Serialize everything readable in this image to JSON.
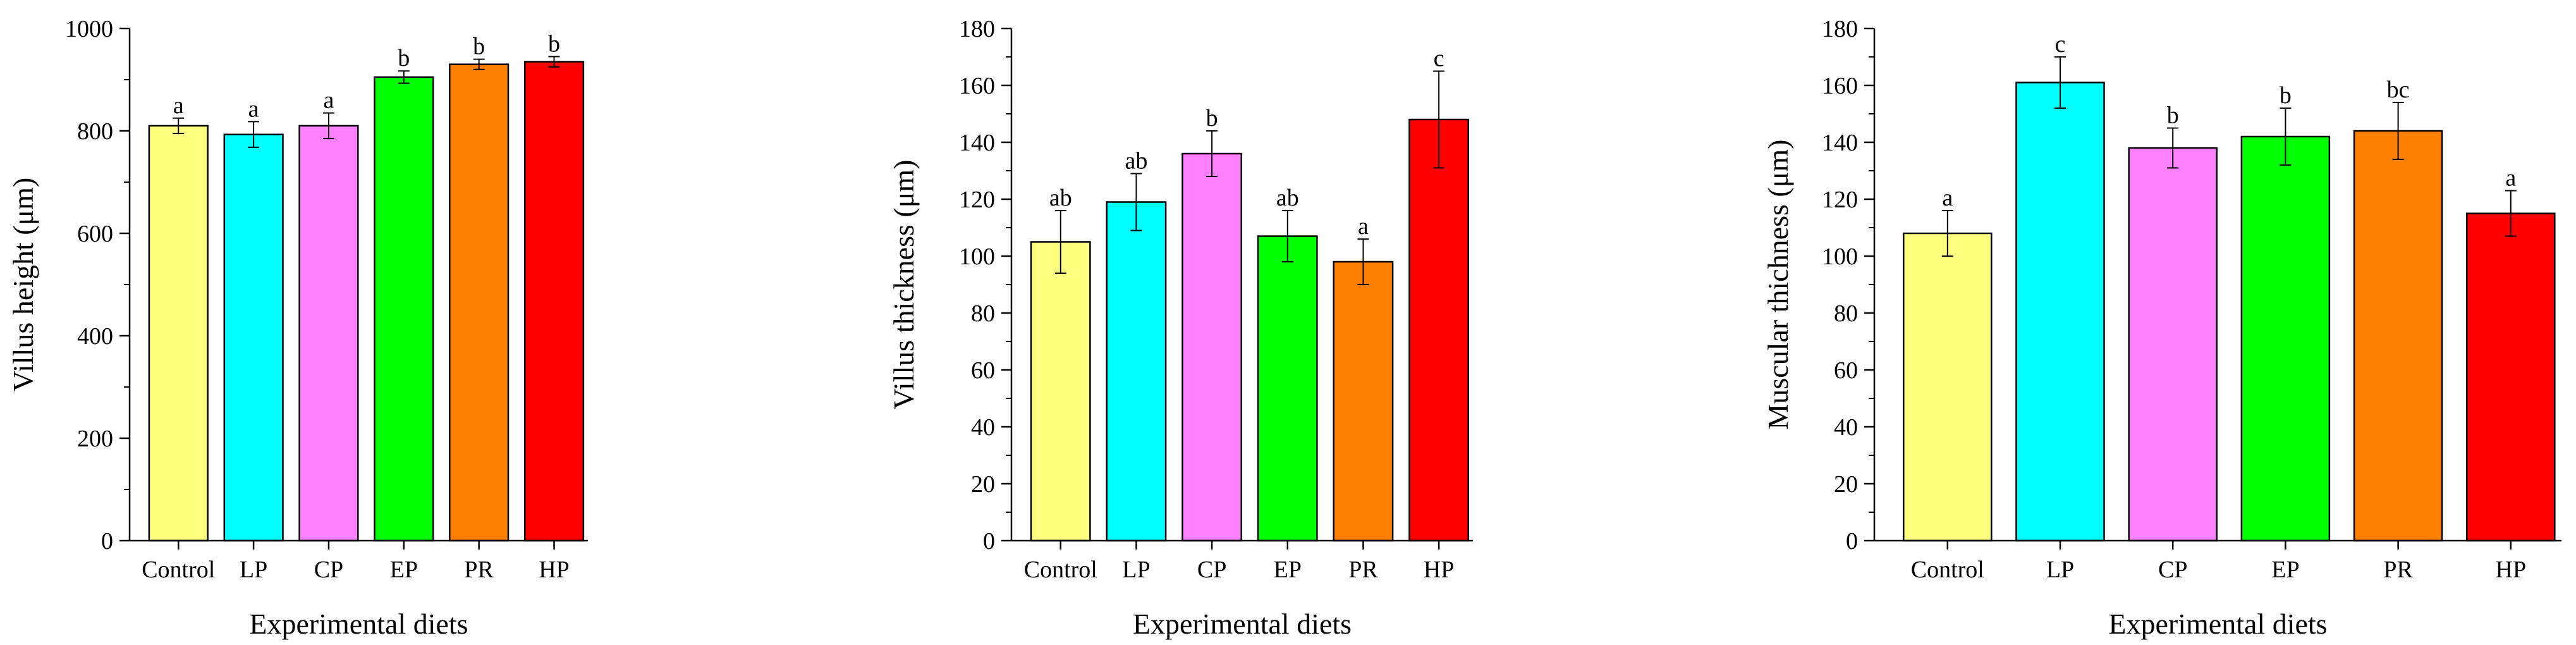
{
  "chart_data": [
    {
      "type": "bar",
      "title": "",
      "xlabel": "Experimental diets",
      "ylabel": "Villus height (μm)",
      "ylim": [
        0,
        1000
      ],
      "yticks": [
        "0",
        "200",
        "400",
        "600",
        "800",
        "1000"
      ],
      "categories": [
        "Control",
        "LP",
        "CP",
        "EP",
        "PR",
        "HP"
      ],
      "values": [
        810,
        793,
        810,
        905,
        930,
        935
      ],
      "errors": [
        15,
        25,
        25,
        12,
        10,
        10
      ],
      "significance": [
        "a",
        "a",
        "a",
        "b",
        "b",
        "b"
      ],
      "colors": [
        "#ffff80",
        "#00ffff",
        "#ff80ff",
        "#00ff00",
        "#ff8000",
        "#ff0000"
      ]
    },
    {
      "type": "bar",
      "title": "",
      "xlabel": "Experimental diets",
      "ylabel": "Villus thickness (μm)",
      "ylim": [
        0,
        180
      ],
      "yticks": [
        "0",
        "20",
        "40",
        "60",
        "80",
        "100",
        "120",
        "140",
        "160",
        "180"
      ],
      "categories": [
        "Control",
        "LP",
        "CP",
        "EP",
        "PR",
        "HP"
      ],
      "values": [
        105,
        119,
        136,
        107,
        98,
        148
      ],
      "errors": [
        11,
        10,
        8,
        9,
        8,
        17
      ],
      "significance": [
        "ab",
        "ab",
        "b",
        "ab",
        "a",
        "c"
      ],
      "colors": [
        "#ffff80",
        "#00ffff",
        "#ff80ff",
        "#00ff00",
        "#ff8000",
        "#ff0000"
      ]
    },
    {
      "type": "bar",
      "title": "",
      "xlabel": "Experimental diets",
      "ylabel": "Muscular thichness (μm)",
      "ylim": [
        0,
        180
      ],
      "yticks": [
        "0",
        "20",
        "40",
        "60",
        "80",
        "100",
        "120",
        "140",
        "160",
        "180"
      ],
      "categories": [
        "Control",
        "LP",
        "CP",
        "EP",
        "PR",
        "HP"
      ],
      "values": [
        108,
        161,
        138,
        142,
        144,
        115
      ],
      "errors": [
        8,
        9,
        7,
        10,
        10,
        8
      ],
      "significance": [
        "a",
        "c",
        "b",
        "b",
        "bc",
        "a"
      ],
      "colors": [
        "#ffff80",
        "#00ffff",
        "#ff80ff",
        "#00ff00",
        "#ff8000",
        "#ff0000"
      ]
    }
  ]
}
